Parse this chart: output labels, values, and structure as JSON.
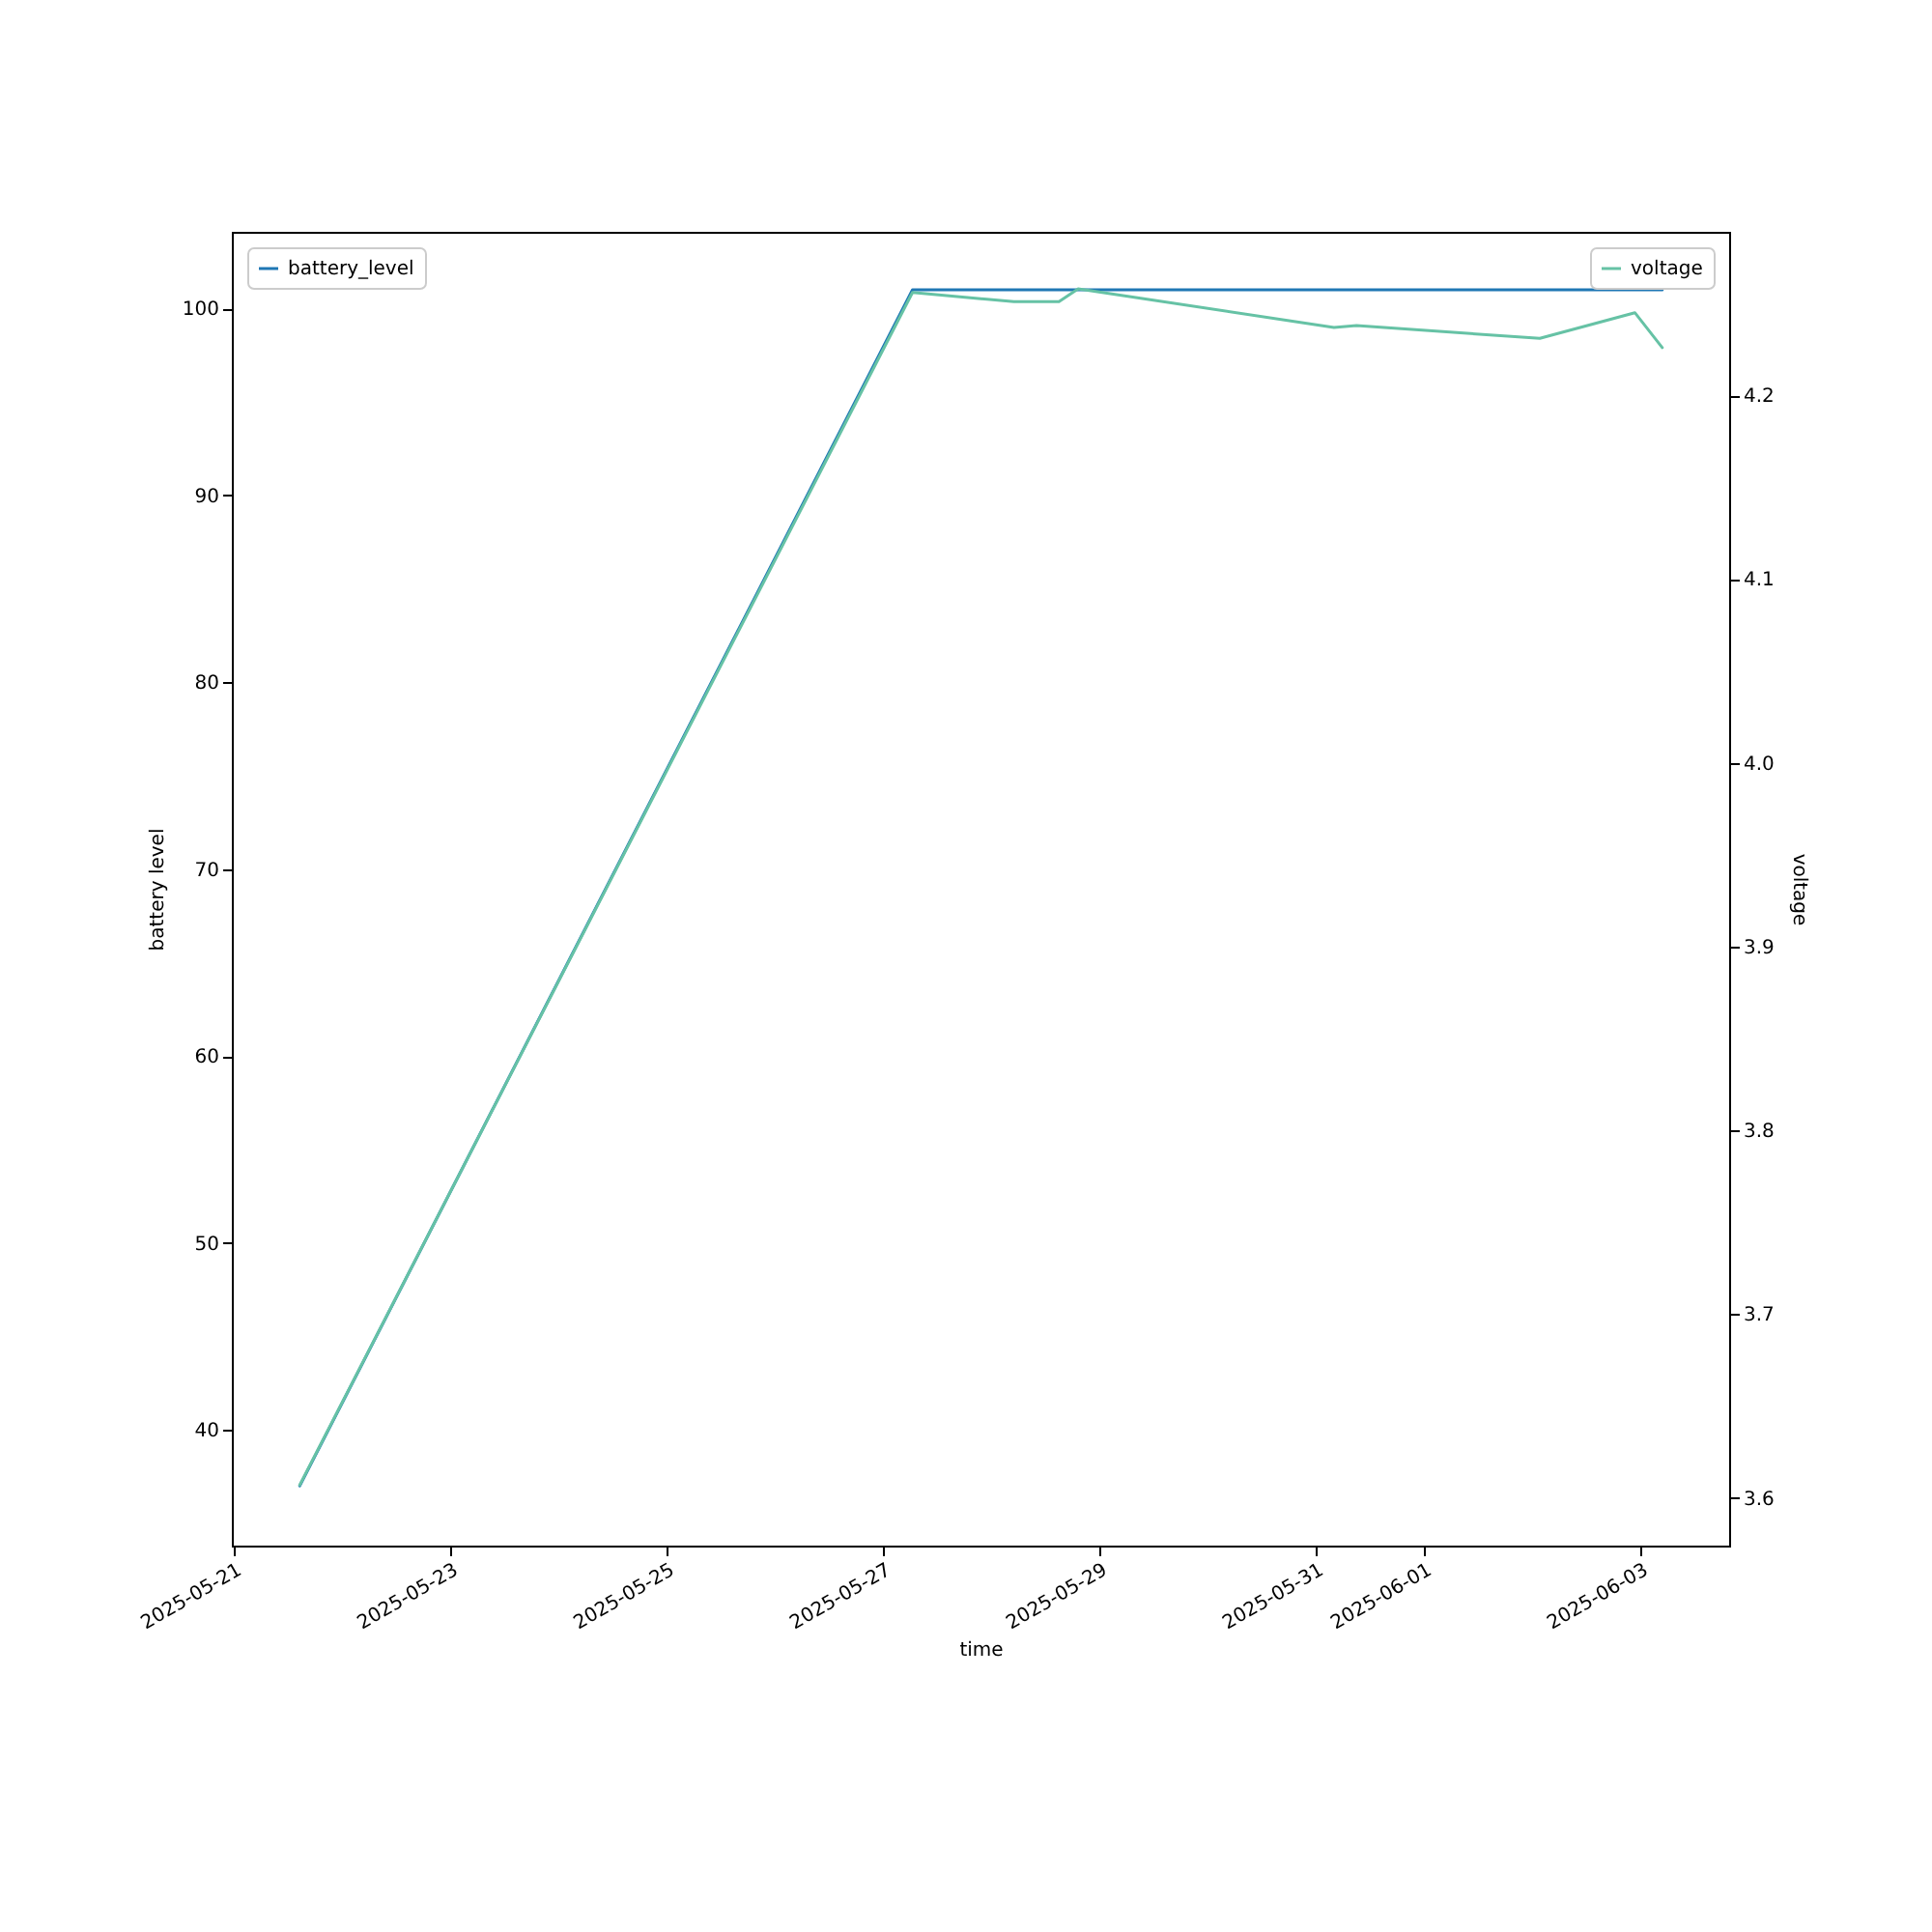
{
  "chart_data": {
    "type": "line",
    "xlabel": "time",
    "ylabel": "battery level",
    "y2label": "voltage",
    "xlim": [
      "2025-05-20T23:30",
      "2025-06-03T19:40"
    ],
    "xticks": [
      "2025-05-21",
      "2025-05-23",
      "2025-05-25",
      "2025-05-27",
      "2025-05-29",
      "2025-05-31",
      "2025-06-01",
      "2025-06-03"
    ],
    "ylim": [
      33.8,
      104.1
    ],
    "yticks": [
      40,
      50,
      60,
      70,
      80,
      90,
      100
    ],
    "y2lim": [
      3.574,
      4.289
    ],
    "y2ticks": [
      3.6,
      3.7,
      3.8,
      3.9,
      {
        "value": 4.0,
        "label": "4.0"
      },
      4.1,
      4.2
    ],
    "legend": "top",
    "grid": false,
    "series": [
      {
        "name": "battery_level",
        "color": "#1f77b4",
        "x": [
          "2025-05-21T14:34",
          "2025-05-27T06:30",
          "2025-06-03T04:50"
        ],
        "values": [
          37,
          101,
          101
        ]
      },
      {
        "name": "voltage",
        "color": "#66c2a5",
        "axis": "y2",
        "x": [
          "2025-05-21T14:34",
          "2025-05-27T06:30",
          "2025-05-28T05:00",
          "2025-05-28T15:00",
          "2025-05-28T19:15",
          "2025-05-31T04:00",
          "2025-05-31T09:00",
          "2025-06-02T01:40",
          "2025-06-02T22:45",
          "2025-06-03T04:50"
        ],
        "values": [
          3.607,
          4.256,
          4.251,
          4.251,
          4.258,
          4.237,
          4.238,
          4.231,
          4.245,
          4.226
        ]
      }
    ]
  }
}
